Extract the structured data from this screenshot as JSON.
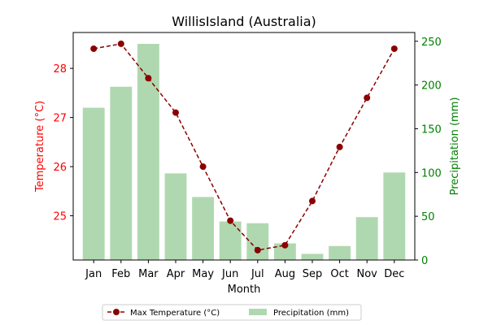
{
  "chart_data": {
    "type": "bar+line",
    "title": "WillisIsland (Australia)",
    "xlabel": "Month",
    "ylabel_left": "Temperature (°C)",
    "ylabel_right": "Precipitation (mm)",
    "categories": [
      "Jan",
      "Feb",
      "Mar",
      "Apr",
      "May",
      "Jun",
      "Jul",
      "Aug",
      "Sep",
      "Oct",
      "Nov",
      "Dec"
    ],
    "series": [
      {
        "name": "Max Temperature (°C)",
        "type": "line",
        "axis": "left",
        "color": "#8b0000",
        "values": [
          28.4,
          28.5,
          27.8,
          27.1,
          26.0,
          24.9,
          24.3,
          24.4,
          25.3,
          26.4,
          27.4,
          28.4
        ]
      },
      {
        "name": "Precipitation (mm)",
        "type": "bar",
        "axis": "right",
        "color": "#b0d8b0",
        "values": [
          174,
          198,
          247,
          99,
          72,
          44,
          42,
          19,
          7,
          16,
          49,
          100
        ]
      }
    ],
    "ylim_left": [
      24.1,
      28.73
    ],
    "yticks_left": [
      25,
      26,
      27,
      28
    ],
    "ylim_right": [
      0,
      260
    ],
    "yticks_right": [
      0,
      50,
      100,
      150,
      200,
      250
    ],
    "left_axis_color": "#ff0000",
    "right_axis_color": "#008000",
    "legend_position": "bottom-center",
    "grid": false
  }
}
